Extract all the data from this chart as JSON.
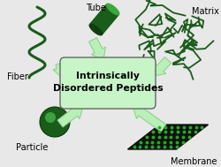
{
  "title_line1": "Intrinsically",
  "title_line2": "Disordered Peptides",
  "labels": {
    "fiber": "Fiber",
    "tube": "Tube",
    "matrix": "Matrix",
    "particle": "Particle",
    "membrane": "Membrane"
  },
  "bg_color": "#e8e8e8",
  "box_fill": "#c8f5c8",
  "box_edge": "#666666",
  "dark_green": "#1a5c1a",
  "mid_green": "#2e8b2e",
  "light_green": "#aaeaaa",
  "arrow_face": "#b8f0b8",
  "arrow_edge": "#88cc88"
}
